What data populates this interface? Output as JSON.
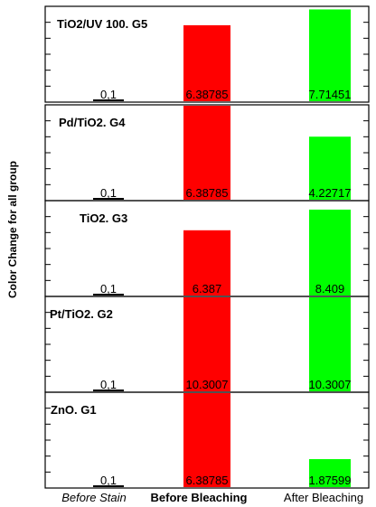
{
  "chart_data": {
    "type": "bar",
    "ylabel": "Color Change for all group",
    "categories": [
      "Before Stain",
      "Before Bleaching",
      "After Bleaching"
    ],
    "category_styles": [
      "italic",
      "bold",
      "normal"
    ],
    "colors": {
      "Before Stain": "#000000",
      "Before Bleaching": "#ff0000",
      "After Bleaching": "#00ff00"
    },
    "grid": false,
    "panels": [
      {
        "title": "TiO2/UV 100. G5",
        "values": [
          0.1,
          6.38785,
          7.71451
        ],
        "labels": [
          "0,1",
          "6.38785",
          "7.71451"
        ],
        "ylim": [
          0,
          7.9
        ]
      },
      {
        "title": "Pd/TiO2. G4",
        "values": [
          0.1,
          6.38785,
          4.22717
        ],
        "labels": [
          "0,1",
          "6.38785",
          "4.22717"
        ],
        "ylim": [
          0,
          6.3
        ]
      },
      {
        "title": "TiO2. G3",
        "values": [
          0.1,
          6.387,
          8.409
        ],
        "labels": [
          "0,1",
          "6.387",
          "8.409"
        ],
        "ylim": [
          0,
          9.2
        ]
      },
      {
        "title": "Pt/TiO2. G2",
        "values": [
          0.1,
          10.3007,
          10.3007
        ],
        "labels": [
          "0,1",
          "10.3007",
          "10.3007"
        ],
        "ylim": [
          0,
          10.3
        ]
      },
      {
        "title": "ZnO. G1",
        "values": [
          0.1,
          6.38785,
          1.87599
        ],
        "labels": [
          "0,1",
          "6.38785",
          "1.87599"
        ],
        "ylim": [
          0,
          6.3
        ]
      }
    ]
  }
}
